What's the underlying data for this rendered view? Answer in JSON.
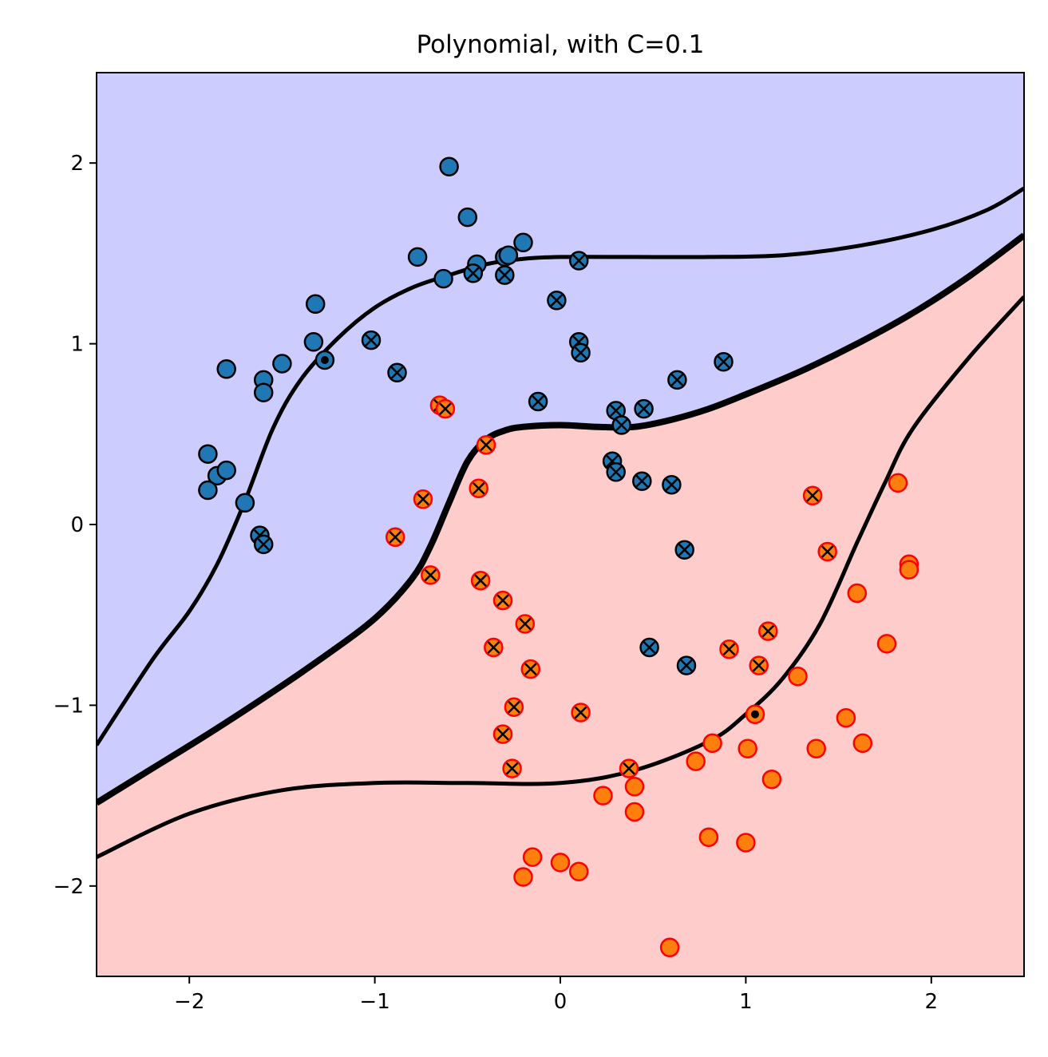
{
  "chart_data": {
    "type": "scatter",
    "title": "Polynomial, with C=0.1",
    "xlabel": "",
    "ylabel": "",
    "xlim": [
      -2.5,
      2.5
    ],
    "ylim": [
      -2.5,
      2.5
    ],
    "xticks": [
      -2,
      -1,
      0,
      1,
      2
    ],
    "yticks": [
      -2,
      -1,
      0,
      1,
      2
    ],
    "xtick_labels": [
      "−2",
      "−1",
      "0",
      "1",
      "2"
    ],
    "ytick_labels": [
      "−2",
      "−1",
      "0",
      "1",
      "2"
    ],
    "grid": false,
    "region_colors": {
      "upper": "#ccccff",
      "lower": "#ffcccc"
    },
    "marker_colors": {
      "class_blue": "#1f77b4",
      "class_orange": "#ff7f0e",
      "orange_edge": "#ff0000",
      "edge": "#000000"
    },
    "decision_boundary": {
      "x": [
        -2.5,
        -2.2,
        -1.9,
        -1.6,
        -1.3,
        -1.0,
        -0.8,
        -0.7,
        -0.6,
        -0.5,
        -0.4,
        -0.3,
        -0.2,
        0.0,
        0.2,
        0.4,
        0.6,
        0.8,
        1.0,
        1.3,
        1.6,
        1.9,
        2.2,
        2.5
      ],
      "y": [
        -1.54,
        -1.35,
        -1.16,
        -0.96,
        -0.75,
        -0.52,
        -0.3,
        -0.12,
        0.12,
        0.35,
        0.47,
        0.52,
        0.54,
        0.55,
        0.54,
        0.54,
        0.58,
        0.64,
        0.72,
        0.85,
        1.0,
        1.17,
        1.37,
        1.6
      ]
    },
    "margin_upper": {
      "x": [
        -2.5,
        -2.2,
        -2.0,
        -1.85,
        -1.7,
        -1.55,
        -1.4,
        -1.2,
        -1.0,
        -0.8,
        -0.6,
        -0.4,
        -0.2,
        0.0,
        0.4,
        0.8,
        1.2,
        1.6,
        2.0,
        2.3,
        2.5
      ],
      "y": [
        -1.22,
        -0.75,
        -0.48,
        -0.22,
        0.13,
        0.53,
        0.8,
        1.03,
        1.2,
        1.31,
        1.38,
        1.44,
        1.47,
        1.48,
        1.48,
        1.48,
        1.49,
        1.54,
        1.63,
        1.74,
        1.86
      ]
    },
    "margin_lower": {
      "x": [
        -2.5,
        -2.0,
        -1.5,
        -1.0,
        -0.5,
        0.0,
        0.4,
        0.8,
        1.0,
        1.2,
        1.4,
        1.6,
        1.75,
        1.9,
        2.2,
        2.5
      ],
      "y": [
        -1.84,
        -1.6,
        -1.47,
        -1.43,
        -1.43,
        -1.43,
        -1.36,
        -1.2,
        -1.05,
        -0.85,
        -0.55,
        -0.1,
        0.23,
        0.53,
        0.92,
        1.26
      ]
    },
    "series": [
      {
        "name": "",
        "color": "#1f77b4",
        "points": [
          [
            -0.6,
            1.98
          ],
          [
            -0.5,
            1.7
          ],
          [
            -0.2,
            1.56
          ],
          [
            -0.3,
            1.48
          ],
          [
            -0.77,
            1.48
          ],
          [
            -0.45,
            1.44
          ],
          [
            -0.28,
            1.49
          ],
          [
            -0.63,
            1.36
          ],
          [
            -1.32,
            1.22
          ],
          [
            -1.33,
            1.01
          ],
          [
            -1.8,
            0.86
          ],
          [
            -1.5,
            0.89
          ],
          [
            -1.6,
            0.8
          ],
          [
            -1.6,
            0.73
          ],
          [
            -1.9,
            0.39
          ],
          [
            -1.85,
            0.27
          ],
          [
            -1.8,
            0.3
          ],
          [
            -1.9,
            0.19
          ],
          [
            -1.7,
            0.12
          ],
          [
            -1.27,
            0.91
          ],
          [
            -0.47,
            1.39
          ],
          [
            -0.3,
            1.38
          ],
          [
            0.1,
            1.46
          ],
          [
            -0.02,
            1.24
          ],
          [
            -1.02,
            1.02
          ],
          [
            0.1,
            1.01
          ],
          [
            0.11,
            0.95
          ],
          [
            -0.88,
            0.84
          ],
          [
            0.88,
            0.9
          ],
          [
            0.63,
            0.8
          ],
          [
            -0.12,
            0.68
          ],
          [
            0.3,
            0.63
          ],
          [
            0.45,
            0.64
          ],
          [
            0.33,
            0.55
          ],
          [
            0.28,
            0.35
          ],
          [
            0.3,
            0.29
          ],
          [
            0.44,
            0.24
          ],
          [
            0.6,
            0.22
          ],
          [
            0.67,
            -0.14
          ],
          [
            -1.62,
            -0.06
          ],
          [
            -1.6,
            -0.11
          ],
          [
            0.48,
            -0.68
          ],
          [
            0.68,
            -0.78
          ]
        ],
        "support_vector": [
          false,
          false,
          false,
          false,
          false,
          false,
          false,
          false,
          false,
          false,
          false,
          false,
          false,
          false,
          false,
          false,
          false,
          false,
          false,
          false,
          true,
          true,
          true,
          true,
          true,
          true,
          true,
          true,
          true,
          true,
          true,
          true,
          true,
          true,
          true,
          true,
          true,
          true,
          true,
          true,
          true,
          true,
          true
        ]
      },
      {
        "name": "",
        "color": "#ff7f0e",
        "points": [
          [
            1.82,
            0.23
          ],
          [
            1.88,
            -0.22
          ],
          [
            1.88,
            -0.25
          ],
          [
            1.6,
            -0.38
          ],
          [
            1.76,
            -0.66
          ],
          [
            1.28,
            -0.84
          ],
          [
            1.05,
            -1.05
          ],
          [
            1.54,
            -1.07
          ],
          [
            0.82,
            -1.21
          ],
          [
            1.01,
            -1.24
          ],
          [
            1.38,
            -1.24
          ],
          [
            1.63,
            -1.21
          ],
          [
            0.73,
            -1.31
          ],
          [
            1.14,
            -1.41
          ],
          [
            0.23,
            -1.5
          ],
          [
            0.4,
            -1.45
          ],
          [
            0.4,
            -1.59
          ],
          [
            0.8,
            -1.73
          ],
          [
            1.0,
            -1.76
          ],
          [
            -0.15,
            -1.84
          ],
          [
            0.0,
            -1.87
          ],
          [
            0.1,
            -1.92
          ],
          [
            -0.2,
            -1.95
          ],
          [
            0.59,
            -2.34
          ],
          [
            -0.65,
            0.66
          ],
          [
            -0.62,
            0.64
          ],
          [
            -0.4,
            0.44
          ],
          [
            -0.74,
            0.14
          ],
          [
            -0.44,
            0.2
          ],
          [
            -0.89,
            -0.07
          ],
          [
            -0.7,
            -0.28
          ],
          [
            -0.43,
            -0.31
          ],
          [
            -0.31,
            -0.42
          ],
          [
            -0.19,
            -0.55
          ],
          [
            -0.36,
            -0.68
          ],
          [
            -0.16,
            -0.8
          ],
          [
            -0.25,
            -1.01
          ],
          [
            -0.31,
            -1.16
          ],
          [
            -0.26,
            -1.35
          ],
          [
            0.11,
            -1.04
          ],
          [
            0.37,
            -1.35
          ],
          [
            1.36,
            0.16
          ],
          [
            1.44,
            -0.15
          ],
          [
            1.12,
            -0.59
          ],
          [
            0.91,
            -0.69
          ],
          [
            1.07,
            -0.78
          ]
        ],
        "support_vector": [
          false,
          false,
          false,
          false,
          false,
          false,
          false,
          false,
          false,
          false,
          false,
          false,
          false,
          false,
          false,
          false,
          false,
          false,
          false,
          false,
          false,
          false,
          false,
          false,
          true,
          true,
          true,
          true,
          true,
          true,
          true,
          true,
          true,
          true,
          true,
          true,
          true,
          true,
          true,
          true,
          true,
          true,
          true,
          true,
          true,
          true
        ]
      }
    ],
    "highlighted_points": [
      [
        -1.27,
        0.91
      ],
      [
        1.05,
        -1.05
      ]
    ]
  }
}
